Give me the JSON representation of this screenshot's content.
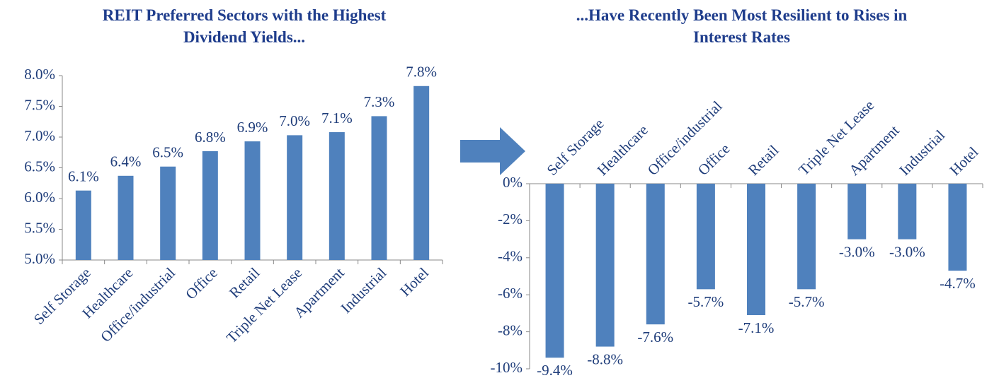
{
  "chart_data": [
    {
      "type": "bar",
      "title": "REIT Preferred Sectors with the Highest Dividend Yields...",
      "categories": [
        "Self Storage",
        "Healthcare",
        "Office/industrial",
        "Office",
        "Retail",
        "Triple Net Lease",
        "Apartment",
        "Industrial",
        "Hotel"
      ],
      "values": [
        6.13,
        6.37,
        6.52,
        6.77,
        6.93,
        7.03,
        7.08,
        7.34,
        7.83
      ],
      "value_labels": [
        "6.1%",
        "6.4%",
        "6.5%",
        "6.8%",
        "6.9%",
        "7.0%",
        "7.1%",
        "7.3%",
        "7.8%"
      ],
      "color": "#4f81bd",
      "ylim": [
        5,
        8
      ],
      "yticks": [
        {
          "value": 5,
          "label": "5.0%"
        },
        {
          "value": 5.5,
          "label": "5.5%"
        },
        {
          "value": 6,
          "label": "6.0%"
        },
        {
          "value": 6.5,
          "label": "6.5%"
        },
        {
          "value": 7,
          "label": "7.0%"
        },
        {
          "value": 7.5,
          "label": "7.5%"
        },
        {
          "value": 8,
          "label": "8.0%"
        }
      ]
    },
    {
      "type": "bar",
      "title": "...Have Recently Been Most Resilient to Rises in Interest Rates",
      "categories": [
        "Self Storage",
        "Healthcare",
        "Office/industrial",
        "Office",
        "Retail",
        "Triple Net Lease",
        "Apartment",
        "Industrial",
        "Hotel"
      ],
      "values": [
        -9.4,
        -8.8,
        -7.6,
        -5.7,
        -7.1,
        -5.7,
        -3.0,
        -3.0,
        -4.7
      ],
      "value_labels": [
        "-9.4%",
        "-8.8%",
        "-7.6%",
        "-5.7%",
        "-7.1%",
        "-5.7%",
        "-3.0%",
        "-3.0%",
        "-4.7%"
      ],
      "color": "#4f81bd",
      "ylim": [
        -10,
        0
      ],
      "yticks": [
        {
          "value": -10,
          "label": "-10%"
        },
        {
          "value": -8,
          "label": "-8%"
        },
        {
          "value": -6,
          "label": "-6%"
        },
        {
          "value": -4,
          "label": "-4%"
        },
        {
          "value": -2,
          "label": "-2%"
        },
        {
          "value": 0,
          "label": "0%"
        }
      ]
    }
  ]
}
